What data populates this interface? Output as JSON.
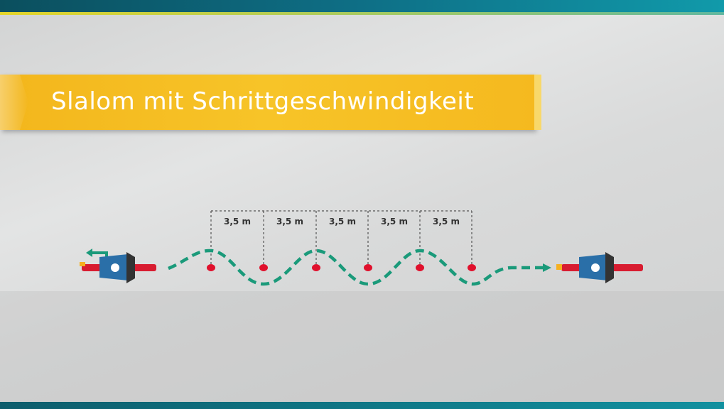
{
  "title": "Slalom mit Schrittgeschwindigkeit",
  "distances": [
    "3,5 m",
    "3,5 m",
    "3,5 m",
    "3,5 m",
    "3,5 m"
  ],
  "colors": {
    "path": "#1a9a7a",
    "cone": "#e0102c",
    "banner": "#f5bb22"
  }
}
